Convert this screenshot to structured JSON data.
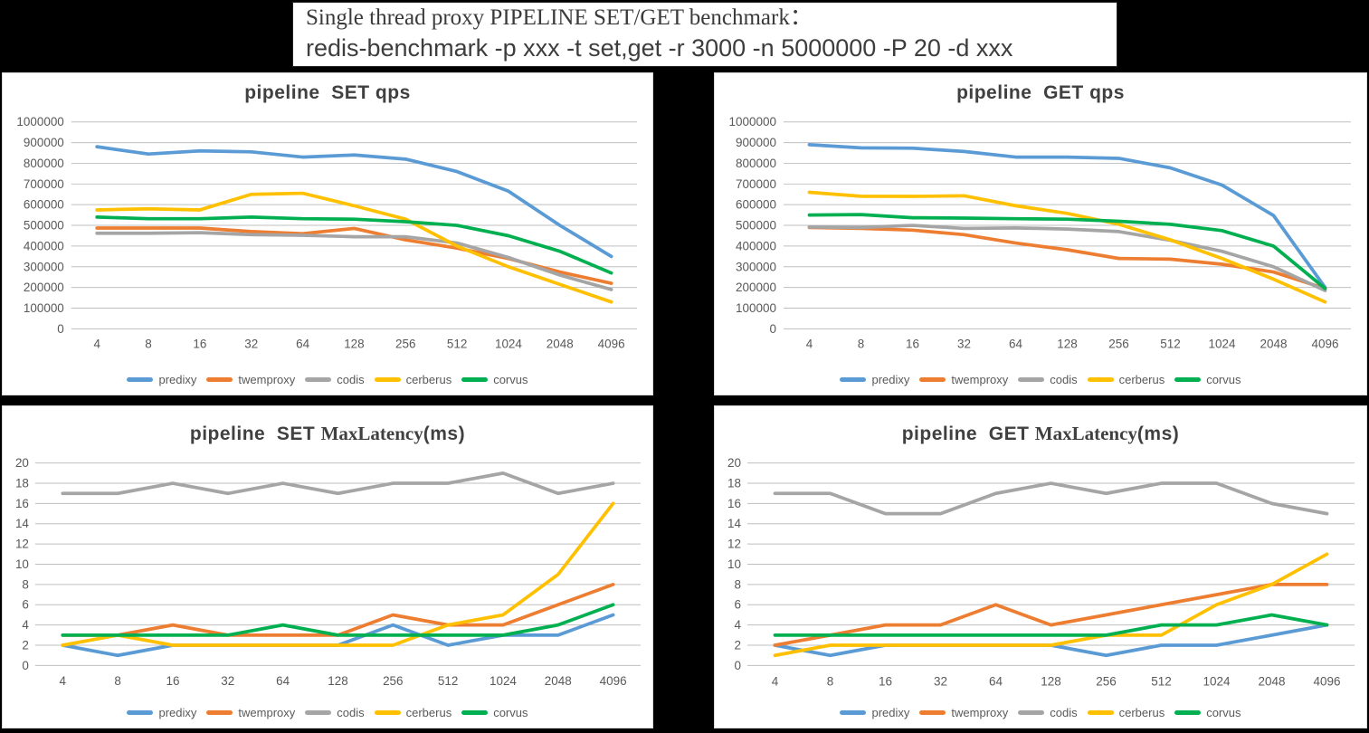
{
  "header": {
    "line1": "Single thread proxy PIPELINE SET/GET benchmark：",
    "line2": "redis-benchmark -p xxx -t set,get -r 3000 -n 5000000 -P 20 -d xxx"
  },
  "colors": {
    "predixy": "#5B9BD5",
    "twemproxy": "#ED7D31",
    "codis": "#A5A5A5",
    "cerberus": "#FFC000",
    "corvus": "#00B050",
    "gridline": "#BFBFBF",
    "tick_text": "#595959",
    "chart_title_text": "#404040"
  },
  "categories": [
    "4",
    "8",
    "16",
    "32",
    "64",
    "128",
    "256",
    "512",
    "1024",
    "2048",
    "4096"
  ],
  "legend_order": [
    "predixy",
    "twemproxy",
    "codis",
    "cerberus",
    "corvus"
  ],
  "chart_data": [
    {
      "id": "set-qps",
      "type": "line",
      "kind": "qps",
      "title_parts": [
        {
          "text": "pipeline  SET qps",
          "serif": false
        }
      ],
      "ylim": [
        0,
        1000000
      ],
      "ytick_step": 100000,
      "yticks": [
        "1000000",
        "900000",
        "800000",
        "700000",
        "600000",
        "500000",
        "400000",
        "300000",
        "200000",
        "100000",
        "0"
      ],
      "grid": true,
      "legend_position": "bottom",
      "series": [
        {
          "name": "predixy",
          "color": "#5B9BD5",
          "values": [
            880000,
            845000,
            860000,
            855000,
            830000,
            840000,
            820000,
            760000,
            665000,
            500000,
            350000
          ]
        },
        {
          "name": "twemproxy",
          "color": "#ED7D31",
          "values": [
            487000,
            487000,
            487000,
            470000,
            460000,
            485000,
            430000,
            390000,
            340000,
            275000,
            220000
          ]
        },
        {
          "name": "codis",
          "color": "#A5A5A5",
          "values": [
            462000,
            462000,
            465000,
            455000,
            452000,
            445000,
            445000,
            415000,
            345000,
            260000,
            190000
          ]
        },
        {
          "name": "cerberus",
          "color": "#FFC000",
          "values": [
            575000,
            580000,
            575000,
            650000,
            655000,
            595000,
            530000,
            400000,
            300000,
            215000,
            130000
          ]
        },
        {
          "name": "corvus",
          "color": "#00B050",
          "values": [
            540000,
            532000,
            532000,
            540000,
            532000,
            530000,
            518000,
            500000,
            450000,
            375000,
            270000
          ]
        }
      ]
    },
    {
      "id": "get-qps",
      "type": "line",
      "kind": "qps",
      "title_parts": [
        {
          "text": "pipeline  GET qps",
          "serif": false
        }
      ],
      "ylim": [
        0,
        1000000
      ],
      "ytick_step": 100000,
      "yticks": [
        "1000000",
        "900000",
        "800000",
        "700000",
        "600000",
        "500000",
        "400000",
        "300000",
        "200000",
        "100000",
        "0"
      ],
      "grid": true,
      "legend_position": "bottom",
      "series": [
        {
          "name": "predixy",
          "color": "#5B9BD5",
          "values": [
            890000,
            875000,
            873000,
            857000,
            830000,
            830000,
            824000,
            778000,
            695000,
            548000,
            200000
          ]
        },
        {
          "name": "twemproxy",
          "color": "#ED7D31",
          "values": [
            490000,
            485000,
            477000,
            455000,
            415000,
            382000,
            340000,
            337000,
            312000,
            275000,
            195000
          ]
        },
        {
          "name": "codis",
          "color": "#A5A5A5",
          "values": [
            492000,
            490000,
            500000,
            485000,
            488000,
            482000,
            470000,
            428000,
            375000,
            300000,
            185000
          ]
        },
        {
          "name": "cerberus",
          "color": "#FFC000",
          "values": [
            660000,
            641000,
            640000,
            643000,
            595000,
            558000,
            505000,
            430000,
            340000,
            240000,
            130000
          ]
        },
        {
          "name": "corvus",
          "color": "#00B050",
          "values": [
            550000,
            552000,
            537000,
            535000,
            532000,
            530000,
            520000,
            505000,
            475000,
            400000,
            195000
          ]
        }
      ]
    },
    {
      "id": "set-maxlatency",
      "type": "line",
      "kind": "latency",
      "title_parts": [
        {
          "text": "pipeline  SET ",
          "serif": false
        },
        {
          "text": "MaxLatency",
          "serif": true
        },
        {
          "text": "(ms)",
          "serif": false
        }
      ],
      "ylim": [
        0,
        20
      ],
      "ytick_step": 2,
      "yticks": [
        "20",
        "18",
        "16",
        "14",
        "12",
        "10",
        "8",
        "6",
        "4",
        "2",
        "0"
      ],
      "grid": true,
      "legend_position": "bottom",
      "series": [
        {
          "name": "predixy",
          "color": "#5B9BD5",
          "values": [
            2,
            1,
            2,
            2,
            2,
            2,
            4,
            2,
            3,
            3,
            5
          ]
        },
        {
          "name": "twemproxy",
          "color": "#ED7D31",
          "values": [
            3,
            3,
            4,
            3,
            3,
            3,
            5,
            4,
            4,
            6,
            8
          ]
        },
        {
          "name": "codis",
          "color": "#A5A5A5",
          "values": [
            17,
            17,
            18,
            17,
            18,
            17,
            18,
            18,
            19,
            17,
            18
          ]
        },
        {
          "name": "cerberus",
          "color": "#FFC000",
          "values": [
            2,
            3,
            2,
            2,
            2,
            2,
            2,
            4,
            5,
            9,
            16
          ]
        },
        {
          "name": "corvus",
          "color": "#00B050",
          "values": [
            3,
            3,
            3,
            3,
            4,
            3,
            3,
            3,
            3,
            4,
            6
          ]
        }
      ]
    },
    {
      "id": "get-maxlatency",
      "type": "line",
      "kind": "latency",
      "title_parts": [
        {
          "text": "pipeline  GET ",
          "serif": false
        },
        {
          "text": "MaxLatency",
          "serif": true
        },
        {
          "text": "(ms)",
          "serif": false
        }
      ],
      "ylim": [
        0,
        20
      ],
      "ytick_step": 2,
      "yticks": [
        "20",
        "18",
        "16",
        "14",
        "12",
        "10",
        "8",
        "6",
        "4",
        "2",
        "0"
      ],
      "grid": true,
      "legend_position": "bottom",
      "series": [
        {
          "name": "predixy",
          "color": "#5B9BD5",
          "values": [
            2,
            1,
            2,
            2,
            2,
            2,
            1,
            2,
            2,
            3,
            4
          ]
        },
        {
          "name": "twemproxy",
          "color": "#ED7D31",
          "values": [
            2,
            3,
            4,
            4,
            6,
            4,
            5,
            6,
            7,
            8,
            8
          ]
        },
        {
          "name": "codis",
          "color": "#A5A5A5",
          "values": [
            17,
            17,
            15,
            15,
            17,
            18,
            17,
            18,
            18,
            16,
            15
          ]
        },
        {
          "name": "cerberus",
          "color": "#FFC000",
          "values": [
            1,
            2,
            2,
            2,
            2,
            2,
            3,
            3,
            6,
            8,
            11
          ]
        },
        {
          "name": "corvus",
          "color": "#00B050",
          "values": [
            3,
            3,
            3,
            3,
            3,
            3,
            3,
            4,
            4,
            5,
            4
          ]
        }
      ]
    }
  ]
}
